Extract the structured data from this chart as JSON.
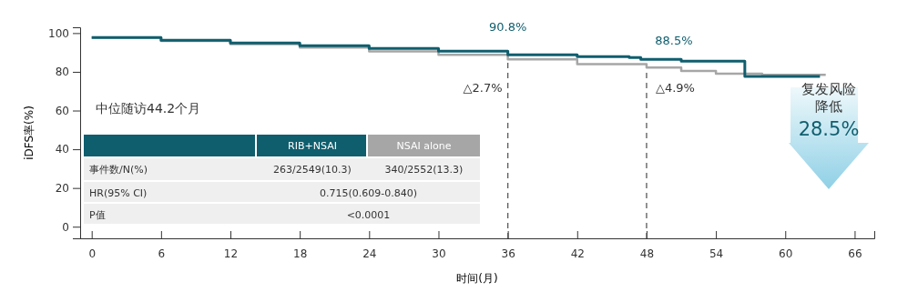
{
  "chart_data": {
    "type": "step",
    "xlabel": "时间(月)",
    "ylabel": "iDFS率(%)",
    "xlim": [
      -1,
      67.7
    ],
    "xticks": [
      0,
      6,
      12,
      18,
      24,
      30,
      36,
      42,
      48,
      54,
      60,
      66
    ],
    "ylim": [
      -6,
      103
    ],
    "yticks": [
      0,
      20,
      40,
      60,
      80,
      100
    ],
    "series": [
      {
        "name": "RIB+NSAI",
        "color": "#0f5e6e",
        "x": [
          0,
          6,
          12,
          18,
          24,
          30,
          36,
          42,
          46.5,
          47.5,
          51,
          56.5,
          63
        ],
        "values": [
          97.7,
          96.3,
          94.9,
          93.5,
          92.1,
          90.7,
          88.8,
          87.9,
          87.4,
          86.4,
          85.5,
          77.6,
          77.6
        ]
      },
      {
        "name": "NSAI alone",
        "color": "#a6a6a6",
        "x": [
          0,
          6,
          12,
          18,
          24,
          30,
          36,
          42,
          48,
          51,
          54,
          58,
          63.5
        ],
        "values": [
          97.7,
          96,
          94.3,
          92.5,
          90.5,
          88.8,
          86.4,
          84,
          82.2,
          80.4,
          79,
          78.5,
          78.5
        ]
      }
    ],
    "ref_lines": [
      {
        "axis": "x",
        "value": 36,
        "color": "#595959",
        "line_style": "dashed"
      },
      {
        "axis": "x",
        "value": 48,
        "color": "#595959",
        "line_style": "dashed"
      }
    ],
    "marker": "none",
    "line_style": "solid",
    "grid": false,
    "annotations": [
      "90.8%",
      "88.5%",
      "△2.7%",
      "△4.9%",
      "中位随访44.2个月",
      "事件数/N(%)",
      "263/2549(10.3)",
      "340/2552(13.3)",
      "HR(95% CI)",
      "0.715(0.609-0.840)",
      "P值",
      "<0.0001",
      "复发风险",
      "降低",
      "28.5%"
    ]
  }
}
